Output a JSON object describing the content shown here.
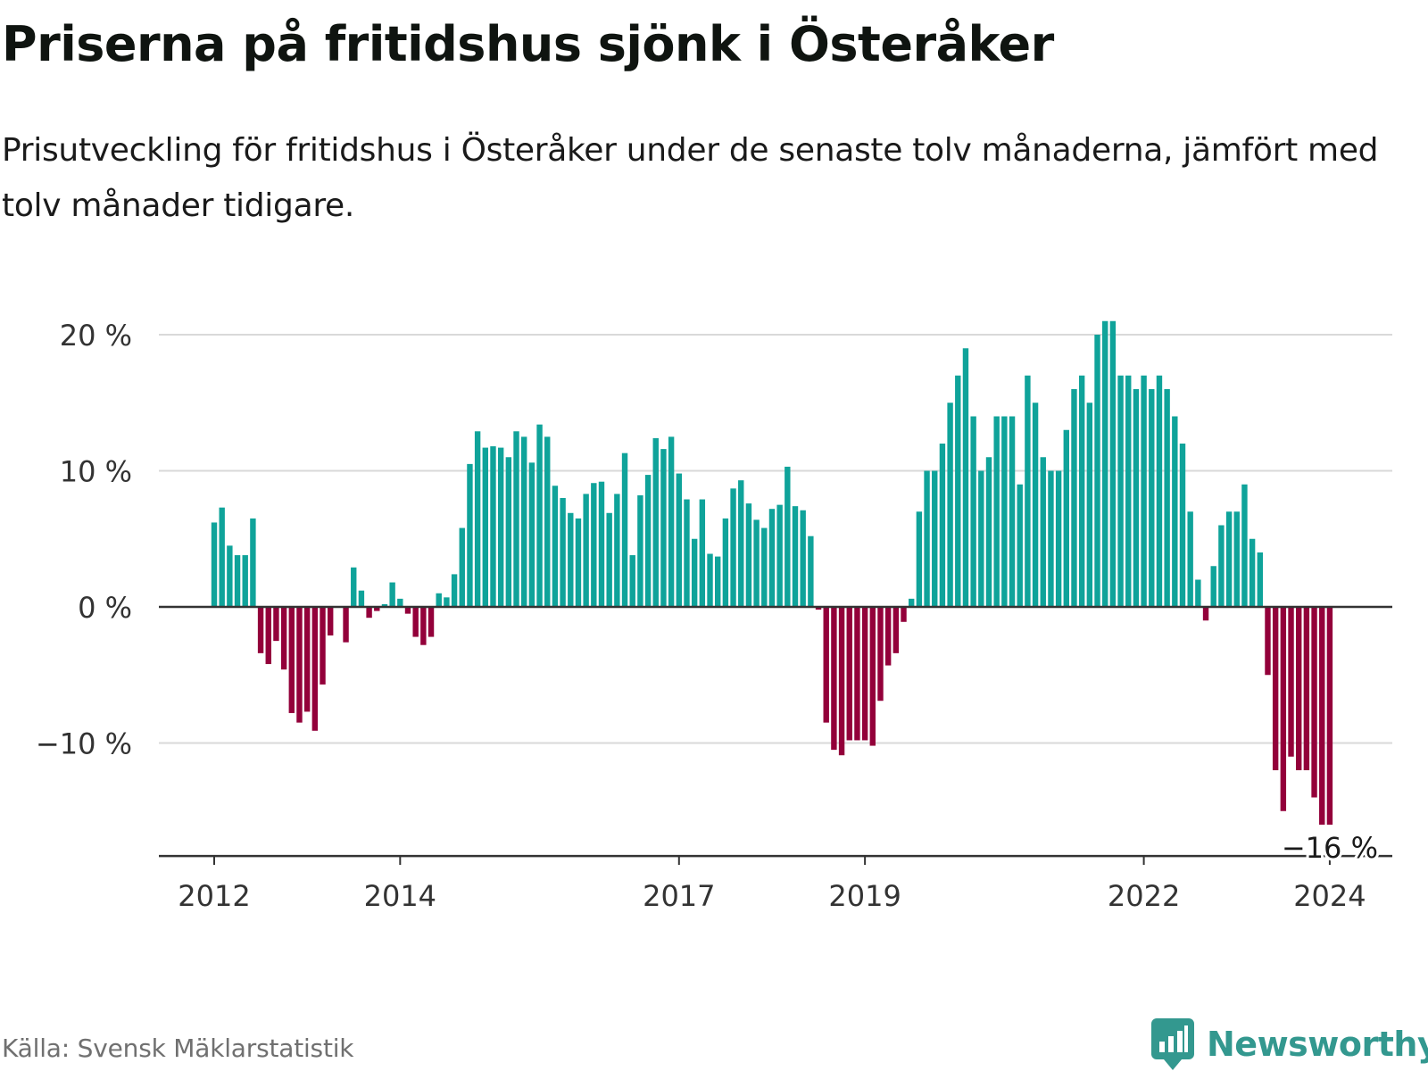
{
  "title": "Priserna på fritidshus sjönk i Österåker",
  "subtitle": "Prisutveckling för fritidshus i Österåker under de senaste tolv månaderna, jämfört med tolv månader tidigare.",
  "source": "Källa: Svensk Mäklarstatistik",
  "brand": {
    "name": "Newsworthy",
    "logo_icon": "bar-chart-speech-bubble-icon"
  },
  "colors": {
    "positive": "#0fa39a",
    "negative": "#93003a",
    "grid": "#d9d9d9",
    "zero_line": "#333333",
    "axis": "#333333",
    "brand": "#33988f"
  },
  "chart_data": {
    "type": "bar",
    "title": "Priserna på fritidshus sjönk i Österåker",
    "xlabel": "",
    "ylabel": "",
    "ylim": [
      -18.3,
      21.1
    ],
    "yticks": [
      {
        "value": 20,
        "label": "20 %"
      },
      {
        "value": 10,
        "label": "10 %"
      },
      {
        "value": 0,
        "label": "0 %"
      },
      {
        "value": -10,
        "label": "−10 %"
      }
    ],
    "start": "2012-01",
    "frequency": "monthly",
    "xticks": [
      {
        "index": 0,
        "label": "2012"
      },
      {
        "index": 24,
        "label": "2014"
      },
      {
        "index": 60,
        "label": "2017"
      },
      {
        "index": 84,
        "label": "2019"
      },
      {
        "index": 120,
        "label": "2022"
      },
      {
        "index": 144,
        "label": "2024"
      }
    ],
    "last_value_label": "−16 %",
    "values": [
      6.2,
      7.3,
      4.5,
      3.8,
      3.8,
      6.5,
      -3.4,
      -4.2,
      -2.5,
      -4.6,
      -7.8,
      -8.5,
      -7.7,
      -9.1,
      -5.7,
      -2.1,
      0.0,
      -2.6,
      2.9,
      1.2,
      -0.8,
      -0.3,
      0.2,
      1.8,
      0.6,
      -0.5,
      -2.2,
      -2.8,
      -2.2,
      1.0,
      0.7,
      2.4,
      5.8,
      10.5,
      12.9,
      11.7,
      11.8,
      11.7,
      11.0,
      12.9,
      12.5,
      10.6,
      13.4,
      12.5,
      8.9,
      8.0,
      6.9,
      6.5,
      8.3,
      9.1,
      9.2,
      6.9,
      8.3,
      11.3,
      3.8,
      8.2,
      9.7,
      12.4,
      11.6,
      12.5,
      9.8,
      7.9,
      5.0,
      7.9,
      3.9,
      3.7,
      6.5,
      8.7,
      9.3,
      7.6,
      6.4,
      5.8,
      7.2,
      7.5,
      10.3,
      7.4,
      7.1,
      5.2,
      -0.2,
      -8.5,
      -10.5,
      -10.9,
      -9.8,
      -9.8,
      -9.8,
      -10.2,
      -6.9,
      -4.3,
      -3.4,
      -1.1,
      0.6,
      7.0,
      10.0,
      10.0,
      12.0,
      15.0,
      17.0,
      19.0,
      14.0,
      10.0,
      11.0,
      14.0,
      14.0,
      14.0,
      9.0,
      17.0,
      15.0,
      11.0,
      10.0,
      10.0,
      13.0,
      16.0,
      17.0,
      15.0,
      20.0,
      21.0,
      21.0,
      17.0,
      17.0,
      16.0,
      17.0,
      16.0,
      17.0,
      16.0,
      14.0,
      12.0,
      7.0,
      2.0,
      -1.0,
      3.0,
      6.0,
      7.0,
      7.0,
      9.0,
      5.0,
      4.0,
      -5.0,
      -12.0,
      -15.0,
      -11.0,
      -12.0,
      -12.0,
      -14.0,
      -16.0,
      -16.0
    ]
  }
}
